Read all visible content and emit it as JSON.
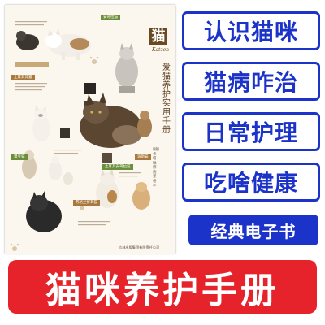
{
  "cover": {
    "title_char": "猫",
    "title_en": "Katzen",
    "title_vertical": "爱猫养护实用手册",
    "side_note": "[德]卡塔琳娜·施莱格尔",
    "publisher": "吉林出版集团有限责任公司",
    "tags": {
      "t1": "安哥拉猫",
      "t2": "土耳其梵猫",
      "t3": "暹罗猫",
      "t4": "波斯猫",
      "t5": "土耳其安哥拉猫",
      "t6": "苏格兰折耳猫"
    }
  },
  "pills": {
    "p1": "认识猫咪",
    "p2": "猫病咋治",
    "p3": "日常护理",
    "p4": "吃啥健康"
  },
  "ebook_label": "经典电子书",
  "banner_text": "猫咪养护手册",
  "colors": {
    "pill_border": "#1c33c9",
    "pill_text": "#1c33c9",
    "ebook_bg": "#1c33c9",
    "banner_bg": "#e6232a",
    "cover_bg": "#fbf7ef"
  }
}
